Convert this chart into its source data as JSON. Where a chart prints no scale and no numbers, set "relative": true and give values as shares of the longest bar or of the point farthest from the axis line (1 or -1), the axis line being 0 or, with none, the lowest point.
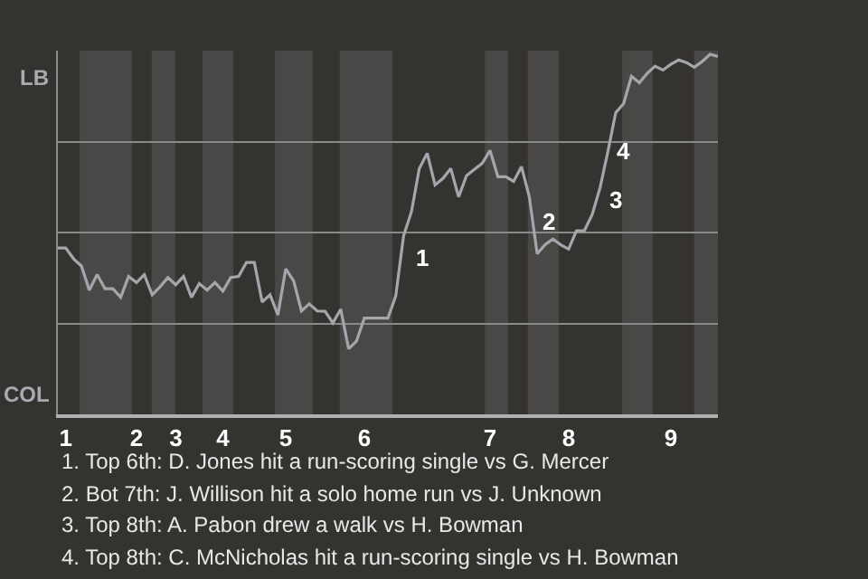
{
  "chart_data": {
    "type": "line",
    "relative": true,
    "categories": [
      null,
      "1",
      null,
      null,
      null,
      null,
      null,
      null,
      null,
      null,
      "2",
      null,
      null,
      null,
      null,
      "3",
      null,
      null,
      null,
      null,
      null,
      "4",
      null,
      null,
      null,
      null,
      null,
      null,
      null,
      "5",
      null,
      null,
      null,
      null,
      null,
      null,
      null,
      null,
      null,
      "6",
      null,
      null,
      null,
      null,
      null,
      null,
      null,
      null,
      null,
      null,
      null,
      null,
      null,
      null,
      null,
      "7",
      null,
      null,
      null,
      null,
      null,
      null,
      null,
      null,
      null,
      "8",
      null,
      null,
      null,
      null,
      null,
      null,
      null,
      null,
      null,
      null,
      null,
      null,
      "9",
      null,
      null,
      null,
      null,
      null,
      null
    ],
    "series": [
      {
        "color": "#a3a7ab",
        "values": [
          0.462,
          0.462,
          0.432,
          0.412,
          0.345,
          0.388,
          0.349,
          0.349,
          0.325,
          0.383,
          0.366,
          0.388,
          0.332,
          0.354,
          0.38,
          0.36,
          0.383,
          0.325,
          0.363,
          0.345,
          0.366,
          0.342,
          0.38,
          0.383,
          0.422,
          0.422,
          0.312,
          0.332,
          0.276,
          0.404,
          0.371,
          0.287,
          0.307,
          0.287,
          0.286,
          0.254,
          0.292,
          0.182,
          0.203,
          0.267,
          0.267,
          0.267,
          0.267,
          0.329,
          0.496,
          0.563,
          0.683,
          0.725,
          0.637,
          0.655,
          0.683,
          0.604,
          0.663,
          0.68,
          0.697,
          0.733,
          0.66,
          0.66,
          0.647,
          0.688,
          0.604,
          0.446,
          0.471,
          0.487,
          0.471,
          0.459,
          0.51,
          0.51,
          0.555,
          0.629,
          0.73,
          0.838,
          0.863,
          0.939,
          0.921,
          0.947,
          0.967,
          0.956,
          0.972,
          0.984,
          0.977,
          0.964,
          0.98,
          1,
          0.994
        ]
      }
    ],
    "grid": "y",
    "marker": "none",
    "line_style": "solid",
    "annotations": [
      "LB",
      "COL",
      "1",
      "2",
      "3",
      "4",
      "1. Top 6th: D. Jones hit a run-scoring single vs G. Mercer",
      "2. Bot 7th: J. Willison hit a solo home run vs J. Unknown",
      "3. Top 8th: A. Pabon drew a walk vs H. Bowman",
      "4. Top 8th: C. McNicholas hit a run-scoring single vs H. Bowman"
    ]
  }
}
